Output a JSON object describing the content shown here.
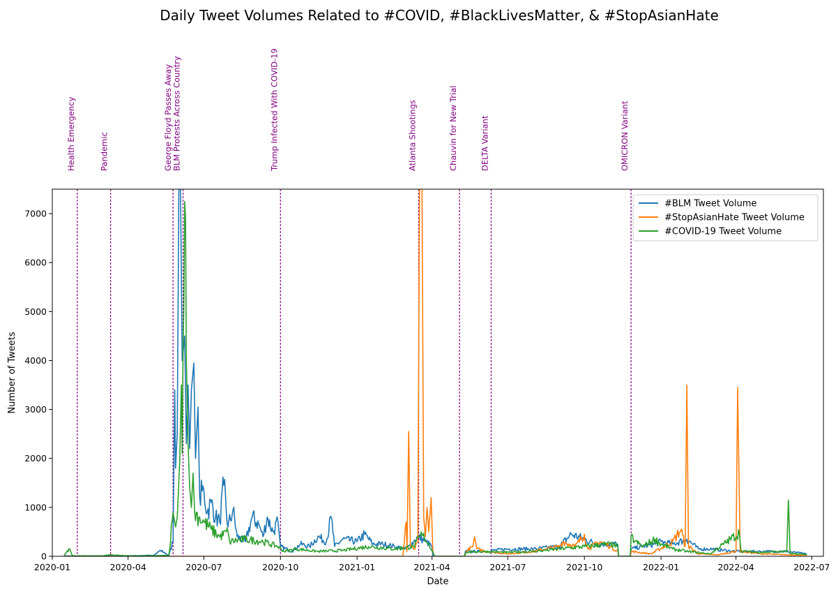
{
  "chart_data": {
    "type": "line",
    "title": "Daily Tweet Volumes Related to #COVID, #BlackLivesMatter, & #StopAsianHate",
    "xlabel": "Date",
    "ylabel": "Number of Tweets",
    "xlim": [
      "2020-01-01",
      "2022-07-15"
    ],
    "ylim": [
      0,
      7500
    ],
    "x_ticks": [
      "2020-01",
      "2020-04",
      "2020-07",
      "2020-10",
      "2021-01",
      "2021-04",
      "2021-07",
      "2021-10",
      "2022-01",
      "2022-04",
      "2022-07"
    ],
    "y_ticks": [
      0,
      1000,
      2000,
      3000,
      4000,
      5000,
      6000,
      7000
    ],
    "grid": false,
    "legend_position": "top-right",
    "series": [
      {
        "name": "#BLM Tweet Volume",
        "color": "#1f77b4",
        "points": [
          [
            "2020-01-15",
            10
          ],
          [
            "2020-02-01",
            5
          ],
          [
            "2020-03-01",
            8
          ],
          [
            "2020-04-01",
            10
          ],
          [
            "2020-05-01",
            20
          ],
          [
            "2020-05-10",
            120
          ],
          [
            "2020-05-20",
            20
          ],
          [
            "2020-05-25",
            300
          ],
          [
            "2020-05-27",
            3400
          ],
          [
            "2020-05-28",
            1800
          ],
          [
            "2020-05-30",
            2500
          ],
          [
            "2020-06-01",
            7500
          ],
          [
            "2020-06-03",
            7500
          ],
          [
            "2020-06-05",
            4000
          ],
          [
            "2020-06-08",
            4500
          ],
          [
            "2020-06-10",
            2300
          ],
          [
            "2020-06-12",
            3500
          ],
          [
            "2020-06-14",
            2200
          ],
          [
            "2020-06-16",
            3400
          ],
          [
            "2020-06-19",
            3950
          ],
          [
            "2020-06-21",
            2000
          ],
          [
            "2020-06-24",
            3050
          ],
          [
            "2020-06-26",
            1200
          ],
          [
            "2020-07-01",
            1350
          ],
          [
            "2020-07-05",
            900
          ],
          [
            "2020-07-10",
            1100
          ],
          [
            "2020-07-15",
            800
          ],
          [
            "2020-07-20",
            700
          ],
          [
            "2020-07-25",
            1450
          ],
          [
            "2020-07-30",
            600
          ],
          [
            "2020-08-05",
            950
          ],
          [
            "2020-08-10",
            400
          ],
          [
            "2020-08-20",
            300
          ],
          [
            "2020-08-28",
            800
          ],
          [
            "2020-09-05",
            650
          ],
          [
            "2020-09-10",
            400
          ],
          [
            "2020-09-15",
            800
          ],
          [
            "2020-09-22",
            500
          ],
          [
            "2020-09-28",
            700
          ],
          [
            "2020-10-01",
            200
          ],
          [
            "2020-10-15",
            100
          ],
          [
            "2020-10-25",
            250
          ],
          [
            "2020-11-05",
            200
          ],
          [
            "2020-11-15",
            400
          ],
          [
            "2020-11-25",
            300
          ],
          [
            "2020-12-01",
            800
          ],
          [
            "2020-12-05",
            200
          ],
          [
            "2020-12-15",
            350
          ],
          [
            "2021-01-01",
            300
          ],
          [
            "2021-01-10",
            450
          ],
          [
            "2021-01-20",
            250
          ],
          [
            "2021-02-01",
            250
          ],
          [
            "2021-02-15",
            200
          ],
          [
            "2021-03-01",
            150
          ],
          [
            "2021-03-10",
            300
          ],
          [
            "2021-03-15",
            400
          ],
          [
            "2021-03-25",
            300
          ],
          [
            "2021-04-01",
            200
          ],
          [
            "2021-04-02",
            0
          ],
          [
            "2021-05-10",
            0
          ],
          [
            "2021-05-11",
            100
          ],
          [
            "2021-06-01",
            100
          ],
          [
            "2021-07-01",
            150
          ],
          [
            "2021-08-01",
            150
          ],
          [
            "2021-09-01",
            200
          ],
          [
            "2021-09-15",
            450
          ],
          [
            "2021-10-01",
            350
          ],
          [
            "2021-10-15",
            250
          ],
          [
            "2021-11-01",
            250
          ],
          [
            "2021-11-10",
            250
          ],
          [
            "2021-11-11",
            0
          ],
          [
            "2021-11-25",
            0
          ],
          [
            "2021-11-26",
            150
          ],
          [
            "2021-12-10",
            200
          ],
          [
            "2021-12-25",
            250
          ],
          [
            "2022-01-01",
            300
          ],
          [
            "2022-01-15",
            250
          ],
          [
            "2022-02-01",
            350
          ],
          [
            "2022-02-15",
            150
          ],
          [
            "2022-03-01",
            150
          ],
          [
            "2022-04-01",
            100
          ],
          [
            "2022-05-01",
            100
          ],
          [
            "2022-06-01",
            100
          ],
          [
            "2022-06-25",
            50
          ]
        ]
      },
      {
        "name": "#StopAsianHate Tweet Volume",
        "color": "#ff7f0e",
        "points": [
          [
            "2020-01-15",
            0
          ],
          [
            "2021-02-25",
            0
          ],
          [
            "2021-03-01",
            700
          ],
          [
            "2021-03-02",
            100
          ],
          [
            "2021-03-04",
            2550
          ],
          [
            "2021-03-06",
            200
          ],
          [
            "2021-03-10",
            150
          ],
          [
            "2021-03-15",
            300
          ],
          [
            "2021-03-17",
            7500
          ],
          [
            "2021-03-20",
            7500
          ],
          [
            "2021-03-22",
            800
          ],
          [
            "2021-03-24",
            400
          ],
          [
            "2021-03-26",
            1000
          ],
          [
            "2021-03-28",
            500
          ],
          [
            "2021-03-31",
            1200
          ],
          [
            "2021-04-02",
            100
          ],
          [
            "2021-04-04",
            0
          ],
          [
            "2021-05-10",
            0
          ],
          [
            "2021-05-12",
            100
          ],
          [
            "2021-05-20",
            200
          ],
          [
            "2021-05-22",
            400
          ],
          [
            "2021-05-25",
            150
          ],
          [
            "2021-06-05",
            100
          ],
          [
            "2021-06-15",
            80
          ],
          [
            "2021-07-01",
            50
          ],
          [
            "2021-08-01",
            100
          ],
          [
            "2021-08-15",
            150
          ],
          [
            "2021-09-01",
            200
          ],
          [
            "2021-09-05",
            300
          ],
          [
            "2021-09-20",
            200
          ],
          [
            "2021-10-01",
            450
          ],
          [
            "2021-10-05",
            150
          ],
          [
            "2021-10-20",
            300
          ],
          [
            "2021-11-01",
            200
          ],
          [
            "2021-11-10",
            100
          ],
          [
            "2021-11-11",
            0
          ],
          [
            "2021-11-25",
            0
          ],
          [
            "2021-11-26",
            100
          ],
          [
            "2021-12-20",
            50
          ],
          [
            "2022-01-15",
            300
          ],
          [
            "2022-01-25",
            550
          ],
          [
            "2022-01-30",
            200
          ],
          [
            "2022-02-01",
            3500
          ],
          [
            "2022-02-03",
            200
          ],
          [
            "2022-02-15",
            50
          ],
          [
            "2022-03-10",
            30
          ],
          [
            "2022-04-01",
            100
          ],
          [
            "2022-04-03",
            3450
          ],
          [
            "2022-04-06",
            100
          ],
          [
            "2022-05-01",
            50
          ],
          [
            "2022-06-01",
            30
          ],
          [
            "2022-06-25",
            20
          ]
        ]
      },
      {
        "name": "#COVID-19 Tweet Volume",
        "color": "#2ca02c",
        "points": [
          [
            "2020-01-15",
            20
          ],
          [
            "2020-01-22",
            150
          ],
          [
            "2020-01-25",
            10
          ],
          [
            "2020-03-01",
            10
          ],
          [
            "2020-03-10",
            30
          ],
          [
            "2020-04-01",
            10
          ],
          [
            "2020-05-01",
            10
          ],
          [
            "2020-05-20",
            20
          ],
          [
            "2020-05-25",
            900
          ],
          [
            "2020-05-28",
            600
          ],
          [
            "2020-05-30",
            800
          ],
          [
            "2020-06-02",
            1900
          ],
          [
            "2020-06-04",
            3500
          ],
          [
            "2020-06-05",
            2100
          ],
          [
            "2020-06-06",
            4200
          ],
          [
            "2020-06-07",
            5100
          ],
          [
            "2020-06-08",
            7250
          ],
          [
            "2020-06-09",
            6900
          ],
          [
            "2020-06-10",
            4000
          ],
          [
            "2020-06-12",
            2300
          ],
          [
            "2020-06-14",
            1400
          ],
          [
            "2020-06-16",
            1000
          ],
          [
            "2020-06-18",
            1700
          ],
          [
            "2020-06-20",
            900
          ],
          [
            "2020-06-25",
            800
          ],
          [
            "2020-07-01",
            700
          ],
          [
            "2020-07-10",
            550
          ],
          [
            "2020-07-20",
            400
          ],
          [
            "2020-07-30",
            500
          ],
          [
            "2020-08-01",
            300
          ],
          [
            "2020-08-20",
            350
          ],
          [
            "2020-09-10",
            300
          ],
          [
            "2020-09-28",
            200
          ],
          [
            "2020-10-05",
            100
          ],
          [
            "2020-10-20",
            150
          ],
          [
            "2020-11-15",
            100
          ],
          [
            "2020-12-15",
            120
          ],
          [
            "2021-01-15",
            200
          ],
          [
            "2021-02-15",
            150
          ],
          [
            "2021-03-10",
            200
          ],
          [
            "2021-03-20",
            450
          ],
          [
            "2021-03-28",
            250
          ],
          [
            "2021-04-02",
            100
          ],
          [
            "2021-04-04",
            0
          ],
          [
            "2021-05-10",
            0
          ],
          [
            "2021-05-12",
            80
          ],
          [
            "2021-06-01",
            100
          ],
          [
            "2021-07-01",
            80
          ],
          [
            "2021-08-01",
            100
          ],
          [
            "2021-09-01",
            150
          ],
          [
            "2021-10-01",
            200
          ],
          [
            "2021-11-01",
            250
          ],
          [
            "2021-11-10",
            200
          ],
          [
            "2021-11-11",
            0
          ],
          [
            "2021-11-25",
            0
          ],
          [
            "2021-11-26",
            400
          ],
          [
            "2021-12-01",
            300
          ],
          [
            "2021-12-10",
            200
          ],
          [
            "2021-12-25",
            350
          ],
          [
            "2022-01-01",
            250
          ],
          [
            "2022-01-15",
            150
          ],
          [
            "2022-02-01",
            100
          ],
          [
            "2022-03-01",
            50
          ],
          [
            "2022-04-05",
            480
          ],
          [
            "2022-04-07",
            100
          ],
          [
            "2022-05-01",
            80
          ],
          [
            "2022-06-01",
            100
          ],
          [
            "2022-06-03",
            1150
          ],
          [
            "2022-06-05",
            50
          ],
          [
            "2022-06-25",
            40
          ]
        ]
      }
    ],
    "events": [
      {
        "date": "2020-01-31",
        "label": "Health Emergency"
      },
      {
        "date": "2020-03-11",
        "label": "Pandemic"
      },
      {
        "date": "2020-05-25",
        "label": "George Floyd Passes Away"
      },
      {
        "date": "2020-06-06",
        "label": "BLM Protests Across Country"
      },
      {
        "date": "2020-10-01",
        "label": "Trump Infected With COVID-19"
      },
      {
        "date": "2021-03-16",
        "label": "Atlanta Shootings"
      },
      {
        "date": "2021-05-04",
        "label": "Chauvin for New Trial"
      },
      {
        "date": "2021-06-11",
        "label": "DELTA Variant"
      },
      {
        "date": "2021-11-26",
        "label": "OMICRON Variant"
      }
    ],
    "event_color": "#800080"
  }
}
